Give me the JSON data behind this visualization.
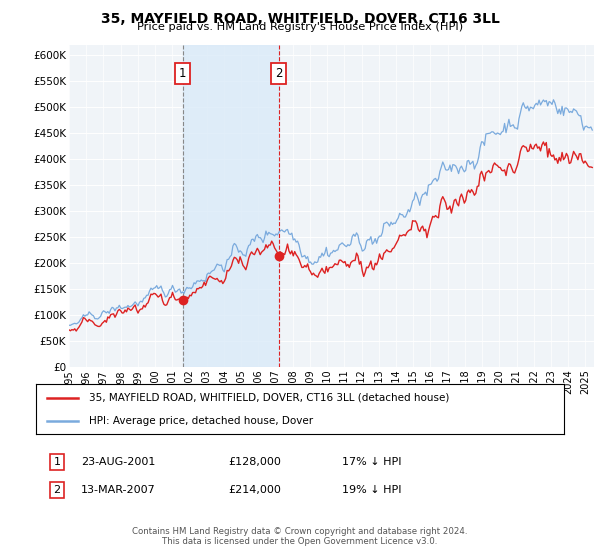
{
  "title": "35, MAYFIELD ROAD, WHITFIELD, DOVER, CT16 3LL",
  "subtitle": "Price paid vs. HM Land Registry's House Price Index (HPI)",
  "ylim": [
    0,
    620000
  ],
  "yticks": [
    0,
    50000,
    100000,
    150000,
    200000,
    250000,
    300000,
    350000,
    400000,
    450000,
    500000,
    550000,
    600000
  ],
  "ytick_labels": [
    "£0",
    "£50K",
    "£100K",
    "£150K",
    "£200K",
    "£250K",
    "£300K",
    "£350K",
    "£400K",
    "£450K",
    "£500K",
    "£550K",
    "£600K"
  ],
  "hpi_color": "#7aaadd",
  "sale_color": "#dd2222",
  "shade_color": "#daeaf8",
  "vline1_color": "#888888",
  "vline2_color": "#dd2222",
  "sale_dates": [
    2001.61,
    2007.19
  ],
  "sale_prices": [
    128000,
    214000
  ],
  "legend_line1": "35, MAYFIELD ROAD, WHITFIELD, DOVER, CT16 3LL (detached house)",
  "legend_line2": "HPI: Average price, detached house, Dover",
  "row1_label": "1",
  "row1_date": "23-AUG-2001",
  "row1_price": "£128,000",
  "row1_pct": "17% ↓ HPI",
  "row2_label": "2",
  "row2_date": "13-MAR-2007",
  "row2_price": "£214,000",
  "row2_pct": "19% ↓ HPI",
  "footer": "Contains HM Land Registry data © Crown copyright and database right 2024.\nThis data is licensed under the Open Government Licence v3.0.",
  "bg_color": "#ffffff",
  "plot_bg": "#f0f4f8",
  "grid_color": "#ffffff",
  "xlim": [
    1995,
    2025.5
  ],
  "xticks": [
    1995,
    1996,
    1997,
    1998,
    1999,
    2000,
    2001,
    2002,
    2003,
    2004,
    2005,
    2006,
    2007,
    2008,
    2009,
    2010,
    2011,
    2012,
    2013,
    2014,
    2015,
    2016,
    2017,
    2018,
    2019,
    2020,
    2021,
    2022,
    2023,
    2024,
    2025
  ]
}
